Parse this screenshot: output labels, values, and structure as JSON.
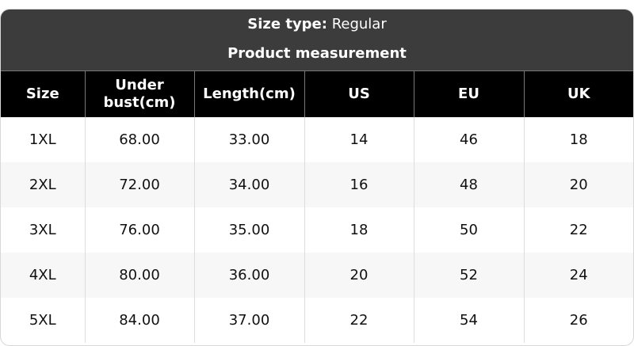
{
  "header": {
    "size_type_label": "Size type:",
    "size_type_value": "Regular",
    "subtitle": "Product measurement"
  },
  "columns": [
    "Size",
    "Under bust(cm)",
    "Length(cm)",
    "US",
    "EU",
    "UK"
  ],
  "rows": [
    [
      "1XL",
      "68.00",
      "33.00",
      "14",
      "46",
      "18"
    ],
    [
      "2XL",
      "72.00",
      "34.00",
      "16",
      "48",
      "20"
    ],
    [
      "3XL",
      "76.00",
      "35.00",
      "18",
      "50",
      "22"
    ],
    [
      "4XL",
      "80.00",
      "36.00",
      "20",
      "52",
      "24"
    ],
    [
      "5XL",
      "84.00",
      "37.00",
      "22",
      "54",
      "26"
    ]
  ],
  "colors": {
    "header_bg": "#3c3c3c",
    "column_header_bg": "#000000",
    "alt_row_bg": "#f7f7f7"
  }
}
